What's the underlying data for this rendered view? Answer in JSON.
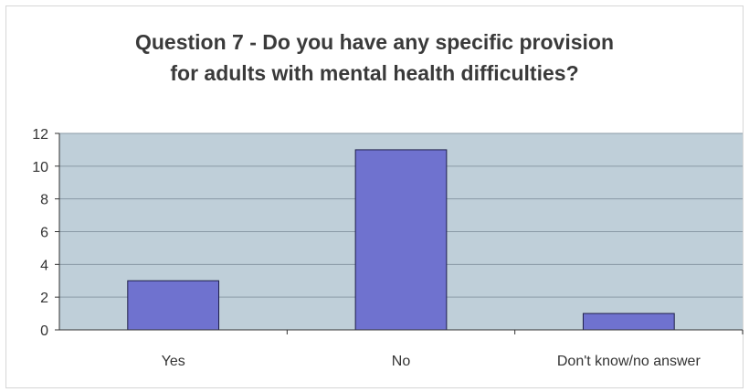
{
  "chart_data": {
    "type": "bar",
    "title_lines": [
      "Question 7 - Do you have any specific provision",
      "for adults with mental health difficulties?"
    ],
    "categories": [
      "Yes",
      "No",
      "Don't know/no answer"
    ],
    "values": [
      3,
      11,
      1
    ],
    "ylim": [
      0,
      12
    ],
    "yticks": [
      0,
      2,
      4,
      6,
      8,
      10,
      12
    ],
    "grid": true,
    "colors": {
      "bar": "#6f72cf",
      "bar_stroke": "#1f1f4a",
      "plot_bg": "#bfcfd9",
      "grid": "#8a9aa6"
    }
  }
}
